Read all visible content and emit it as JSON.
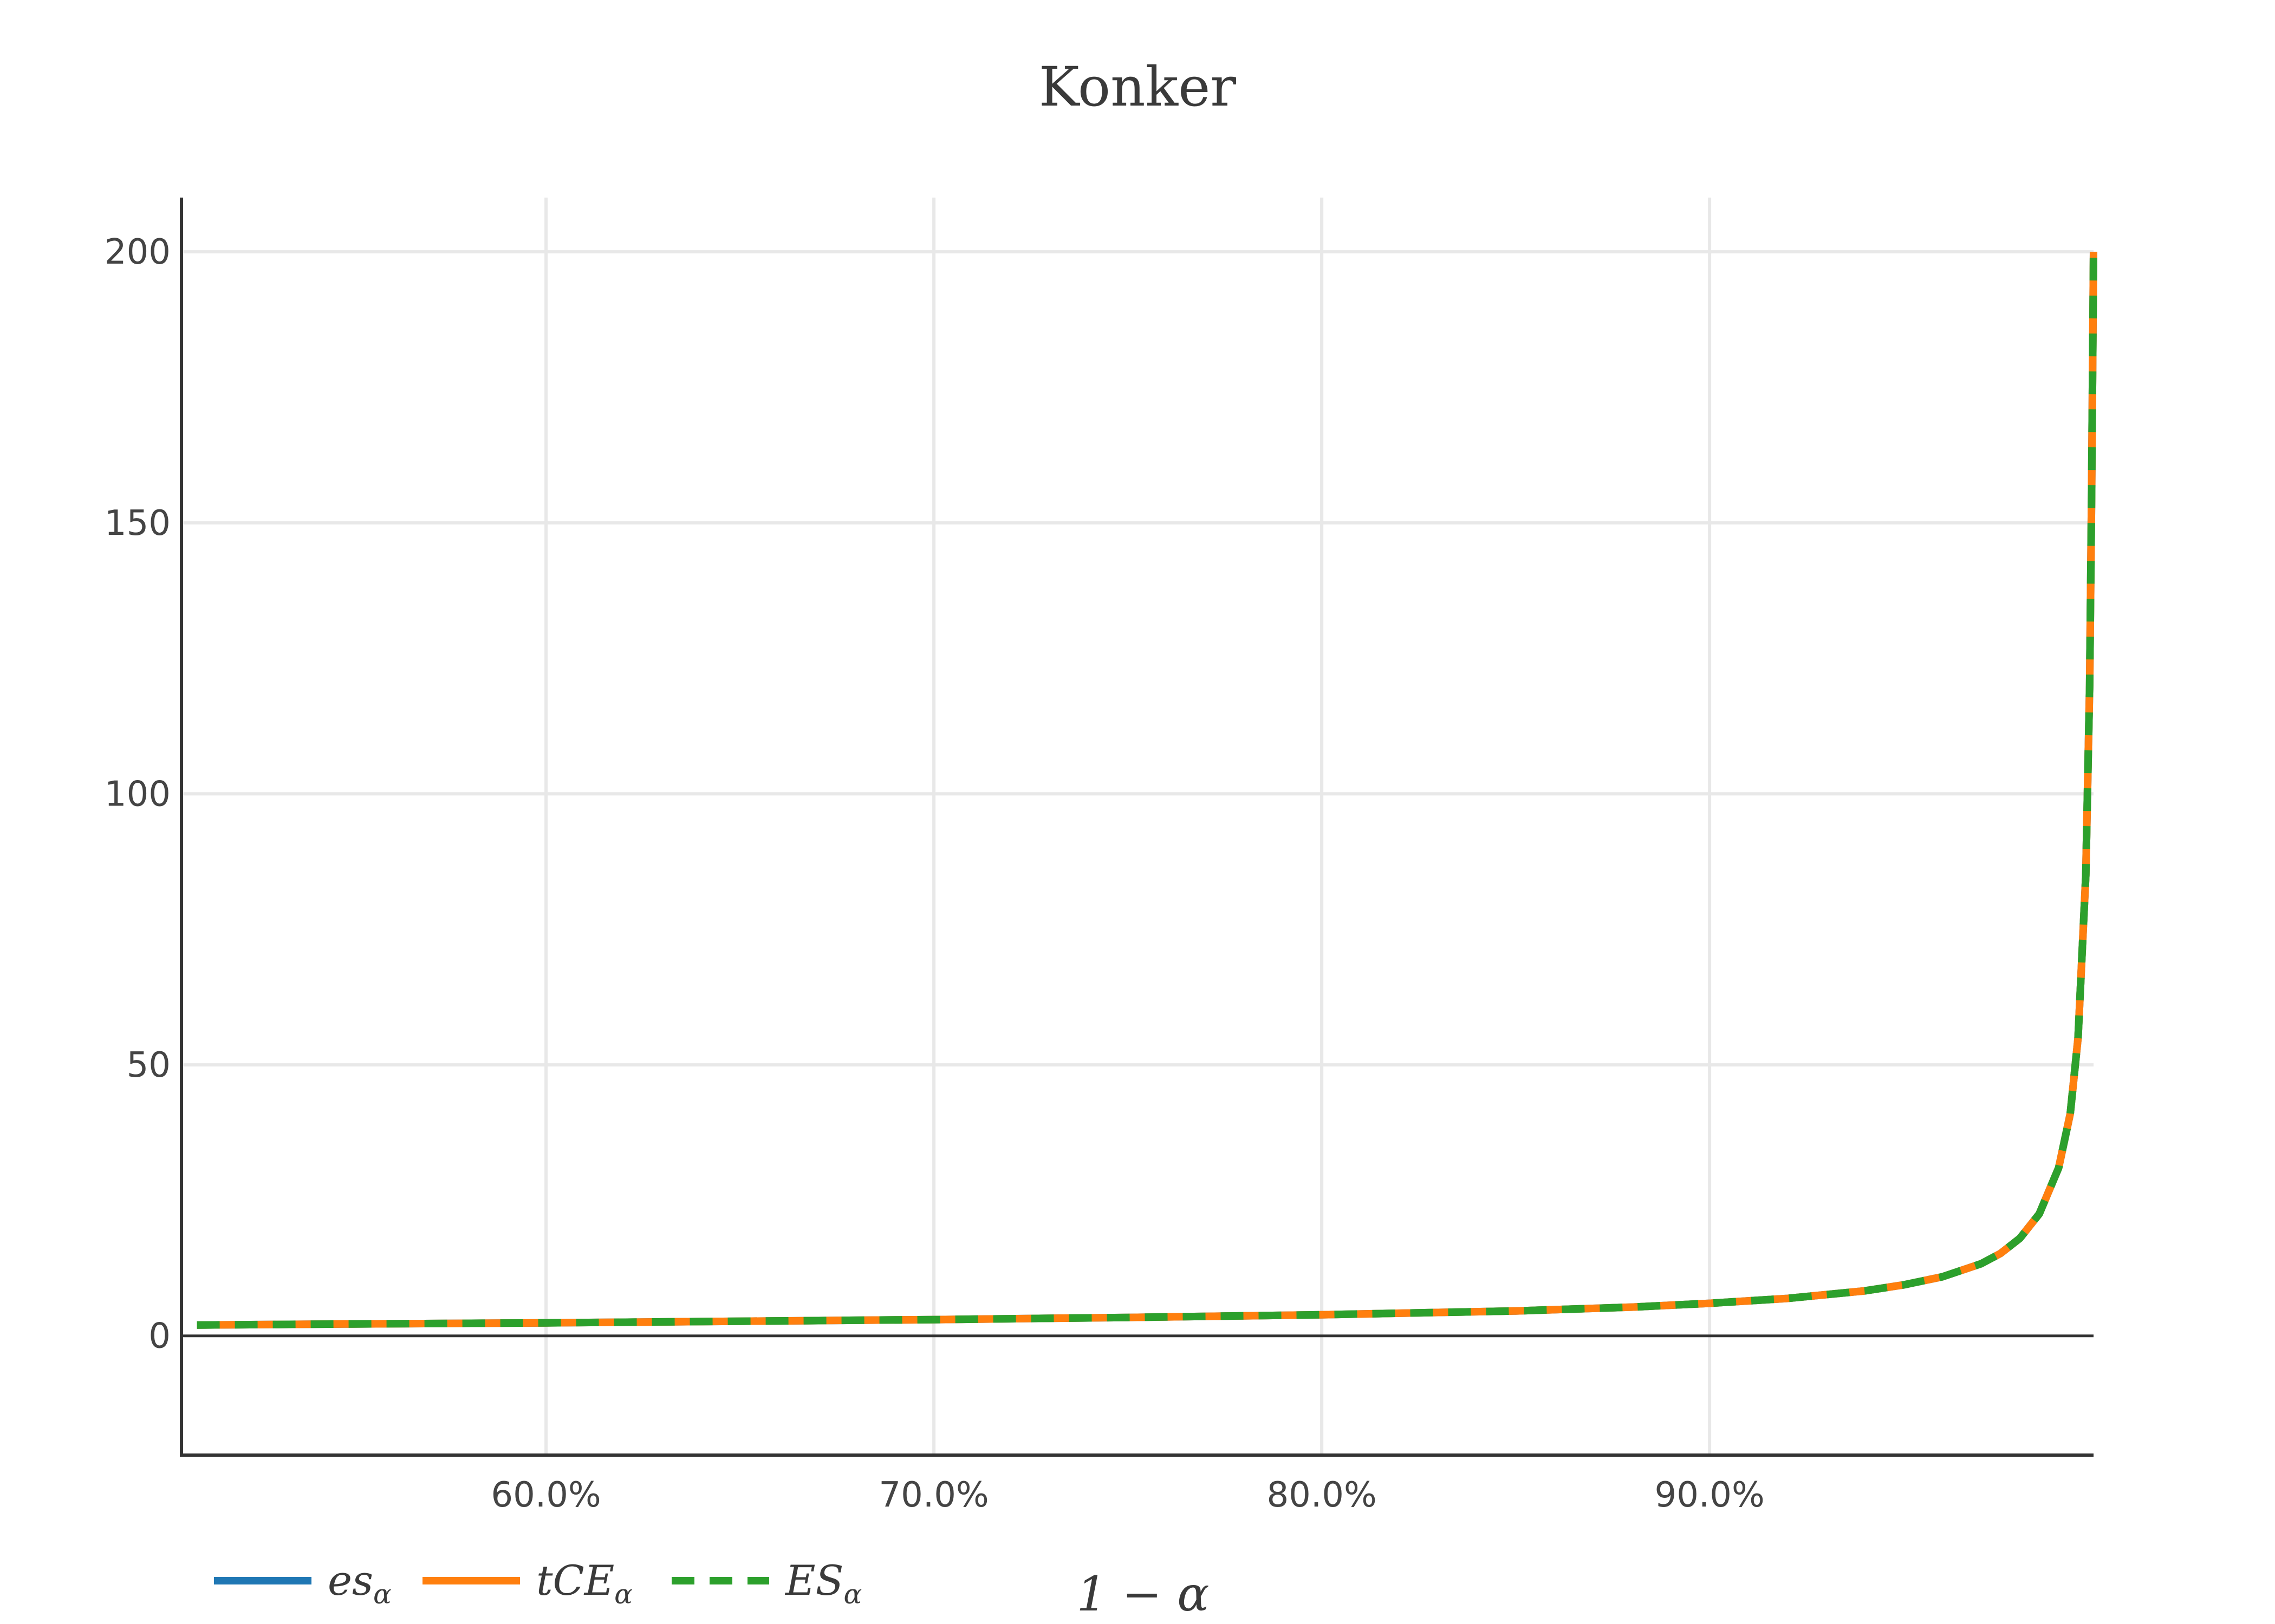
{
  "chart_data": {
    "type": "line",
    "title": "Konker",
    "xlabel": "1 − α",
    "ylabel": "",
    "xlim": [
      0.506,
      0.999
    ],
    "ylim": [
      -22,
      210
    ],
    "x_tick_values": [
      0.6,
      0.7,
      0.8,
      0.9
    ],
    "x_tick_labels": [
      "60.0%",
      "70.0%",
      "80.0%",
      "90.0%"
    ],
    "y_ticks": [
      0,
      50,
      100,
      150,
      200
    ],
    "grid": true,
    "legend_position": "bottom-left",
    "x": [
      0.51,
      0.55,
      0.6,
      0.65,
      0.7,
      0.75,
      0.8,
      0.85,
      0.88,
      0.9,
      0.92,
      0.94,
      0.95,
      0.96,
      0.97,
      0.975,
      0.98,
      0.985,
      0.99,
      0.993,
      0.995,
      0.997,
      0.998,
      0.9985,
      0.999
    ],
    "series": [
      {
        "name": "es",
        "name_sub": "α",
        "color": "#1f77b4",
        "style": "solid",
        "values": [
          2.0,
          2.2,
          2.4,
          2.7,
          3.0,
          3.4,
          3.9,
          4.6,
          5.3,
          6.0,
          6.9,
          8.3,
          9.4,
          10.9,
          13.3,
          15.2,
          18.0,
          22.5,
          31.0,
          41.0,
          55.0,
          85.0,
          120.0,
          155.0,
          200.0
        ]
      },
      {
        "name": "tCE",
        "name_sub": "α",
        "color": "#ff7f0e",
        "style": "solid",
        "values": [
          2.0,
          2.2,
          2.4,
          2.7,
          3.0,
          3.4,
          3.9,
          4.6,
          5.3,
          6.0,
          6.9,
          8.3,
          9.4,
          10.9,
          13.3,
          15.2,
          18.0,
          22.5,
          31.0,
          41.0,
          55.0,
          85.0,
          120.0,
          155.0,
          200.0
        ]
      },
      {
        "name": "ES",
        "name_sub": "α",
        "color": "#2ca02c",
        "style": "dashed",
        "values": [
          2.0,
          2.2,
          2.4,
          2.7,
          3.0,
          3.4,
          3.9,
          4.6,
          5.3,
          6.0,
          6.9,
          8.3,
          9.4,
          10.9,
          13.3,
          15.2,
          18.0,
          22.5,
          31.0,
          41.0,
          55.0,
          85.0,
          120.0,
          155.0,
          200.0
        ]
      }
    ]
  }
}
